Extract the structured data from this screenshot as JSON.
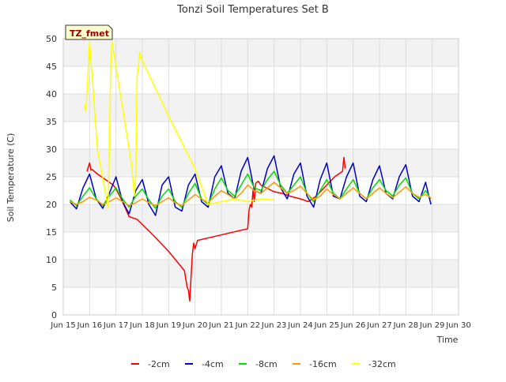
{
  "chart_data": {
    "type": "line",
    "title": "Tonzi Soil Temperatures Set B",
    "xlabel": "Time",
    "ylabel": "Soil Temperature (C)",
    "badge": "TZ_fmet",
    "xlim": [
      15,
      30
    ],
    "ylim": [
      0,
      50
    ],
    "grid": true,
    "legend_position": "bottom",
    "x_ticks": [
      {
        "value": 15,
        "label": "Jun 15"
      },
      {
        "value": 16,
        "label": "Jun 16"
      },
      {
        "value": 17,
        "label": "Jun 17"
      },
      {
        "value": 18,
        "label": "Jun 18"
      },
      {
        "value": 19,
        "label": "Jun 19"
      },
      {
        "value": 20,
        "label": "Jun 20"
      },
      {
        "value": 21,
        "label": "Jun 21"
      },
      {
        "value": 22,
        "label": "Jun 22"
      },
      {
        "value": 23,
        "label": "Jun 23"
      },
      {
        "value": 24,
        "label": "Jun 24"
      },
      {
        "value": 25,
        "label": "Jun 25"
      },
      {
        "value": 26,
        "label": "Jun 26"
      },
      {
        "value": 27,
        "label": "Jun 27"
      },
      {
        "value": 28,
        "label": "Jun 28"
      },
      {
        "value": 29,
        "label": "Jun 29"
      },
      {
        "value": 30,
        "label": "Jun 30"
      }
    ],
    "y_ticks": [
      0,
      5,
      10,
      15,
      20,
      25,
      30,
      35,
      40,
      45,
      50
    ],
    "series": [
      {
        "name": "-2cm",
        "color": "#ff0000",
        "x": [
          15.9,
          16.0,
          16.05,
          16.1,
          16.3,
          16.6,
          16.9,
          17.0,
          17.2,
          17.5,
          17.8,
          18.4,
          19.0,
          19.6,
          19.7,
          19.75,
          19.8,
          19.85,
          19.9,
          19.95,
          20.0,
          20.05,
          20.1,
          20.2,
          22.0,
          22.05,
          22.1,
          22.15,
          22.2,
          22.25,
          22.3,
          22.35,
          22.4,
          22.5,
          22.7,
          23.0,
          23.3,
          23.6,
          24.0,
          24.3,
          24.6,
          25.0,
          25.3,
          25.6,
          25.65,
          25.7
        ],
        "y": [
          26.0,
          27.5,
          26.2,
          26.3,
          25.5,
          24.5,
          23.5,
          22.8,
          21.0,
          17.8,
          17.3,
          14.5,
          11.5,
          8.0,
          5.0,
          4.5,
          2.5,
          7.0,
          11.0,
          13.0,
          12.0,
          12.8,
          13.5,
          13.6,
          15.6,
          19.0,
          20.0,
          19.5,
          22.5,
          20.5,
          23.8,
          24.0,
          24.2,
          23.5,
          23.0,
          22.3,
          22.0,
          21.5,
          21.0,
          20.5,
          21.5,
          23.5,
          25.0,
          26.0,
          28.5,
          26.5
        ]
      },
      {
        "name": "-4cm",
        "color": "#0000cc",
        "x": [
          15.25,
          15.5,
          15.75,
          16.0,
          16.25,
          16.5,
          16.75,
          17.0,
          17.25,
          17.5,
          17.75,
          18.0,
          18.25,
          18.5,
          18.75,
          19.0,
          19.25,
          19.5,
          19.75,
          20.0,
          20.25,
          20.5,
          20.75,
          21.0,
          21.25,
          21.5,
          21.75,
          22.0,
          22.25,
          22.5,
          22.75,
          23.0,
          23.25,
          23.5,
          23.75,
          24.0,
          24.25,
          24.5,
          24.75,
          25.0,
          25.25,
          25.5,
          25.75,
          26.0,
          26.25,
          26.5,
          26.75,
          27.0,
          27.25,
          27.5,
          27.75,
          28.0,
          28.25,
          28.5,
          28.75,
          28.95
        ],
        "y": [
          20.5,
          19.2,
          23.0,
          25.5,
          21.0,
          19.3,
          22.0,
          25.0,
          20.5,
          18.3,
          22.5,
          24.5,
          20.0,
          18.0,
          23.5,
          25.0,
          19.5,
          18.8,
          23.5,
          25.5,
          20.5,
          19.5,
          25.0,
          27.0,
          22.0,
          21.0,
          26.0,
          28.5,
          22.5,
          22.0,
          26.5,
          28.8,
          23.0,
          21.0,
          25.5,
          27.5,
          21.5,
          19.5,
          24.5,
          27.5,
          21.5,
          21.0,
          25.0,
          27.5,
          21.5,
          20.5,
          24.5,
          27.0,
          22.0,
          21.0,
          25.0,
          27.2,
          21.5,
          20.5,
          24.0,
          20.0
        ]
      },
      {
        "name": "-8cm",
        "color": "#00dd00",
        "x": [
          15.25,
          15.5,
          15.75,
          16.0,
          16.25,
          16.5,
          16.75,
          17.0,
          17.25,
          17.5,
          17.75,
          18.0,
          18.25,
          18.5,
          18.75,
          19.0,
          19.25,
          19.5,
          19.75,
          20.0,
          20.25,
          20.5,
          20.75,
          21.0,
          21.25,
          21.5,
          21.75,
          22.0,
          22.25,
          22.5,
          22.75,
          23.0,
          23.25,
          23.5,
          23.75,
          24.0,
          24.25,
          24.5,
          24.75,
          25.0,
          25.25,
          25.5,
          25.75,
          26.0,
          26.25,
          26.5,
          26.75,
          27.0,
          27.25,
          27.5,
          27.75,
          28.0,
          28.25,
          28.5,
          28.75,
          28.95
        ],
        "y": [
          20.8,
          19.8,
          21.5,
          23.0,
          21.0,
          19.8,
          21.5,
          23.0,
          21.0,
          19.5,
          21.5,
          22.8,
          20.8,
          19.3,
          21.5,
          22.8,
          20.5,
          19.5,
          22.0,
          23.8,
          21.0,
          20.0,
          22.8,
          24.8,
          22.5,
          21.5,
          23.5,
          25.5,
          23.0,
          22.5,
          24.5,
          26.0,
          23.5,
          22.0,
          23.5,
          25.0,
          22.0,
          20.5,
          22.5,
          24.5,
          22.0,
          21.0,
          22.8,
          24.5,
          22.0,
          21.0,
          23.0,
          24.5,
          22.5,
          21.5,
          23.5,
          24.8,
          22.0,
          21.0,
          22.5,
          21.0
        ]
      },
      {
        "name": "-16cm",
        "color": "#ff9900",
        "x": [
          15.25,
          15.5,
          15.75,
          16.0,
          16.25,
          16.5,
          16.75,
          17.0,
          17.25,
          17.5,
          17.75,
          18.0,
          18.25,
          18.5,
          18.75,
          19.0,
          19.25,
          19.5,
          19.75,
          20.0,
          20.25,
          20.5,
          20.75,
          21.0,
          21.25,
          21.5,
          21.75,
          22.0,
          22.25,
          22.5,
          22.75,
          23.0,
          23.25,
          23.5,
          23.75,
          24.0,
          24.25,
          24.5,
          24.75,
          25.0,
          25.25,
          25.5,
          25.75,
          26.0,
          26.25,
          26.5,
          26.75,
          27.0,
          27.25,
          27.5,
          27.75,
          28.0,
          28.25,
          28.5,
          28.75,
          28.95
        ],
        "y": [
          20.5,
          20.0,
          20.5,
          21.3,
          20.8,
          20.0,
          20.5,
          21.2,
          20.5,
          19.8,
          20.3,
          21.0,
          20.3,
          19.8,
          20.5,
          21.2,
          20.3,
          19.8,
          20.8,
          21.8,
          21.0,
          20.3,
          21.5,
          22.5,
          21.8,
          21.0,
          22.0,
          23.5,
          22.5,
          22.0,
          23.0,
          24.0,
          23.0,
          22.0,
          22.5,
          23.3,
          22.0,
          20.8,
          21.5,
          22.8,
          21.8,
          21.0,
          22.0,
          23.0,
          22.0,
          21.0,
          22.0,
          23.0,
          22.0,
          21.2,
          22.2,
          23.2,
          22.0,
          21.3,
          21.8,
          21.2
        ]
      },
      {
        "name": "-32cm",
        "color": "#ffff00",
        "x": [
          15.8,
          15.85,
          15.9,
          15.95,
          16.0,
          16.3,
          16.7,
          16.75,
          16.8,
          16.85,
          16.9,
          17.0,
          17.3,
          17.6,
          17.7,
          17.75,
          17.8,
          17.85,
          17.9,
          18.0,
          19.0,
          20.0,
          20.5,
          21.0,
          21.5,
          22.0,
          22.5,
          23.0
        ],
        "y": [
          38.0,
          37.0,
          40.0,
          45.0,
          49.5,
          30.0,
          19.5,
          30.0,
          45.0,
          49.5,
          48.0,
          45.0,
          36.0,
          27.0,
          21.5,
          25.0,
          43.0,
          45.0,
          47.5,
          46.0,
          36.0,
          26.5,
          20.0,
          20.5,
          21.0,
          20.5,
          21.0,
          20.8
        ]
      }
    ]
  }
}
